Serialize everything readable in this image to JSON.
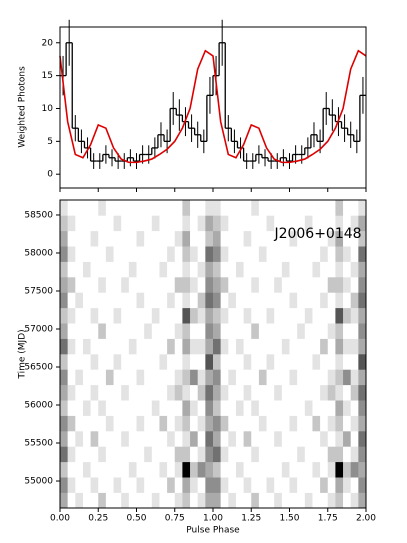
{
  "chart_data": [
    {
      "type": "histogram",
      "ylabel": "Weighted Photons",
      "xlim": [
        0,
        2
      ],
      "ylim": [
        -2.1,
        22.4
      ],
      "xticks": [
        0,
        0.25,
        0.5,
        0.75,
        1,
        1.25,
        1.5,
        1.75,
        2
      ],
      "yticks": [
        0,
        5,
        10,
        15,
        20
      ],
      "color": "#000000",
      "bins": [
        0,
        0.04,
        0.08,
        0.12,
        0.16,
        0.2,
        0.24,
        0.28,
        0.32,
        0.36,
        0.4,
        0.44,
        0.48,
        0.52,
        0.56,
        0.6,
        0.64,
        0.68,
        0.72,
        0.76,
        0.8,
        0.84,
        0.88,
        0.92,
        0.96,
        1,
        1.04,
        1.08,
        1.12,
        1.16,
        1.2,
        1.24,
        1.28,
        1.32,
        1.36,
        1.4,
        1.44,
        1.48,
        1.52,
        1.56,
        1.6,
        1.64,
        1.68,
        1.72,
        1.76,
        1.8,
        1.84,
        1.88,
        1.92,
        1.96,
        2
      ],
      "values": [
        15,
        20,
        7,
        5,
        4,
        2,
        2,
        3,
        2.5,
        2,
        2,
        2.5,
        2,
        3,
        3,
        4,
        6,
        5,
        10,
        9,
        8,
        7,
        6,
        5,
        12,
        15,
        20,
        7,
        5,
        4,
        2,
        2,
        3,
        2.5,
        2,
        2,
        2.5,
        2,
        3,
        3,
        4,
        6,
        5,
        10,
        9,
        8,
        7,
        6,
        5,
        12
      ],
      "errors": [
        3,
        3.5,
        2,
        1.8,
        1.6,
        1.2,
        1.2,
        1.4,
        1.3,
        1.2,
        1.2,
        1.3,
        1.2,
        1.4,
        1.4,
        1.6,
        1.9,
        1.8,
        2.5,
        2.4,
        2.2,
        2.1,
        2,
        1.8,
        2.8,
        3,
        3.5,
        2,
        1.8,
        1.6,
        1.2,
        1.2,
        1.4,
        1.3,
        1.2,
        1.2,
        1.3,
        1.2,
        1.4,
        1.4,
        1.6,
        1.9,
        1.8,
        2.5,
        2.4,
        2.2,
        2.1,
        2,
        1.8,
        2.8
      ],
      "model": {
        "color": "#dd0000",
        "x": [
          0,
          0.05,
          0.1,
          0.15,
          0.2,
          0.25,
          0.3,
          0.35,
          0.4,
          0.45,
          0.5,
          0.55,
          0.6,
          0.65,
          0.7,
          0.75,
          0.8,
          0.85,
          0.9,
          0.95,
          1,
          1.05,
          1.1,
          1.15,
          1.2,
          1.25,
          1.3,
          1.35,
          1.4,
          1.45,
          1.5,
          1.55,
          1.6,
          1.65,
          1.7,
          1.75,
          1.8,
          1.85,
          1.9,
          1.95,
          2
        ],
        "values": [
          18,
          8,
          3,
          2.5,
          4.5,
          7.5,
          7,
          4,
          2.3,
          1.8,
          1.8,
          2,
          2.3,
          3,
          3.8,
          5,
          7,
          10,
          16,
          18.8,
          18,
          8,
          3,
          2.5,
          4.5,
          7.5,
          7,
          4,
          2.3,
          1.8,
          1.8,
          2,
          2.3,
          3,
          3.8,
          5,
          7,
          10,
          16,
          18.8,
          18
        ]
      }
    },
    {
      "type": "heatmap",
      "xlabel": "Pulse Phase",
      "ylabel": "Time (MJD)",
      "annotation": "J2006+0148",
      "xlim": [
        0,
        2
      ],
      "ylim": [
        54645,
        58697
      ],
      "xticks": [
        {
          "value": 0,
          "label": "0.00"
        },
        {
          "value": 0.25,
          "label": "0.25"
        },
        {
          "value": 0.5,
          "label": "0.50"
        },
        {
          "value": 0.75,
          "label": "0.75"
        },
        {
          "value": 1,
          "label": "1.00"
        },
        {
          "value": 1.25,
          "label": "1.25"
        },
        {
          "value": 1.5,
          "label": "1.50"
        },
        {
          "value": 1.75,
          "label": "1.75"
        },
        {
          "value": 2,
          "label": "2.00"
        }
      ],
      "yticks": [
        55000,
        55500,
        56000,
        56500,
        57000,
        57500,
        58000,
        58500
      ],
      "zlim": [
        0,
        9
      ],
      "colors": [
        "#ffffff",
        "#000000"
      ],
      "z": [
        [
          3,
          0,
          1,
          0,
          0,
          2,
          0,
          0,
          1,
          0,
          0,
          0,
          1,
          0,
          0,
          1,
          2,
          0,
          1,
          3,
          3,
          0,
          1,
          0,
          0,
          2,
          0,
          0,
          1,
          0,
          0,
          0,
          1,
          0,
          0,
          1,
          2,
          0,
          1,
          3
        ],
        [
          4,
          1,
          0,
          0,
          1,
          0,
          0,
          1,
          0,
          0,
          1,
          0,
          0,
          0,
          2,
          0,
          3,
          1,
          0,
          4,
          4,
          1,
          0,
          0,
          1,
          0,
          0,
          1,
          0,
          0,
          1,
          0,
          0,
          0,
          2,
          0,
          3,
          1,
          0,
          4
        ],
        [
          2,
          0,
          0,
          1,
          0,
          0,
          0,
          0,
          0,
          1,
          0,
          0,
          0,
          1,
          0,
          1,
          9,
          2,
          4,
          3,
          2,
          0,
          0,
          1,
          0,
          0,
          0,
          0,
          0,
          1,
          0,
          0,
          0,
          1,
          0,
          1,
          9,
          2,
          4,
          3
        ],
        [
          5,
          1,
          0,
          0,
          0,
          1,
          0,
          0,
          0,
          0,
          0,
          1,
          0,
          0,
          0,
          2,
          2,
          0,
          1,
          4,
          5,
          1,
          0,
          0,
          0,
          1,
          0,
          0,
          0,
          0,
          0,
          1,
          0,
          0,
          0,
          2,
          2,
          0,
          1,
          4
        ],
        [
          3,
          0,
          1,
          0,
          2,
          0,
          0,
          0,
          1,
          0,
          0,
          0,
          0,
          0,
          1,
          0,
          1,
          3,
          0,
          5,
          3,
          0,
          1,
          0,
          2,
          0,
          0,
          0,
          1,
          0,
          0,
          0,
          0,
          0,
          1,
          0,
          1,
          3,
          0,
          5
        ],
        [
          4,
          2,
          0,
          0,
          0,
          0,
          1,
          0,
          0,
          0,
          1,
          0,
          0,
          2,
          0,
          1,
          2,
          0,
          1,
          3,
          4,
          2,
          0,
          0,
          0,
          0,
          1,
          0,
          0,
          0,
          1,
          0,
          0,
          2,
          0,
          1,
          2,
          0,
          1,
          3
        ],
        [
          2,
          0,
          0,
          1,
          0,
          1,
          0,
          0,
          0,
          0,
          0,
          0,
          1,
          0,
          0,
          0,
          3,
          1,
          0,
          4,
          2,
          0,
          0,
          1,
          0,
          1,
          0,
          0,
          0,
          0,
          0,
          0,
          1,
          0,
          0,
          0,
          3,
          1,
          0,
          4
        ],
        [
          3,
          1,
          0,
          0,
          1,
          0,
          0,
          0,
          1,
          0,
          0,
          0,
          0,
          0,
          1,
          2,
          1,
          0,
          2,
          5,
          3,
          1,
          0,
          0,
          1,
          0,
          0,
          0,
          1,
          0,
          0,
          0,
          0,
          0,
          1,
          2,
          1,
          0,
          2,
          5
        ],
        [
          4,
          0,
          1,
          0,
          0,
          0,
          2,
          0,
          0,
          0,
          1,
          0,
          0,
          0,
          0,
          1,
          2,
          4,
          1,
          3,
          4,
          0,
          1,
          0,
          0,
          0,
          2,
          0,
          0,
          0,
          1,
          0,
          0,
          0,
          0,
          1,
          2,
          4,
          1,
          3
        ],
        [
          2,
          0,
          0,
          0,
          1,
          0,
          0,
          1,
          0,
          0,
          0,
          0,
          0,
          1,
          0,
          0,
          1,
          0,
          0,
          6,
          2,
          0,
          0,
          0,
          1,
          0,
          0,
          1,
          0,
          0,
          0,
          0,
          0,
          1,
          0,
          0,
          1,
          0,
          0,
          6
        ],
        [
          5,
          1,
          0,
          1,
          0,
          0,
          0,
          0,
          0,
          1,
          0,
          0,
          0,
          0,
          2,
          0,
          3,
          1,
          1,
          3,
          5,
          1,
          0,
          1,
          0,
          0,
          0,
          0,
          0,
          1,
          0,
          0,
          0,
          0,
          2,
          0,
          3,
          1,
          1,
          3
        ],
        [
          3,
          0,
          0,
          0,
          0,
          2,
          0,
          0,
          0,
          0,
          0,
          1,
          0,
          0,
          0,
          1,
          2,
          0,
          0,
          4,
          3,
          0,
          0,
          0,
          0,
          2,
          0,
          0,
          0,
          0,
          0,
          1,
          0,
          0,
          0,
          1,
          2,
          0,
          0,
          4
        ],
        [
          2,
          1,
          0,
          0,
          1,
          0,
          0,
          1,
          0,
          0,
          0,
          0,
          1,
          0,
          0,
          0,
          6,
          2,
          1,
          3,
          2,
          1,
          0,
          0,
          1,
          0,
          0,
          1,
          0,
          0,
          0,
          0,
          1,
          0,
          0,
          0,
          6,
          2,
          1,
          3
        ],
        [
          4,
          0,
          1,
          0,
          0,
          0,
          0,
          0,
          0,
          0,
          1,
          0,
          0,
          0,
          1,
          0,
          1,
          0,
          2,
          5,
          4,
          0,
          1,
          0,
          0,
          0,
          0,
          0,
          0,
          0,
          1,
          0,
          0,
          0,
          1,
          0,
          1,
          0,
          2,
          5
        ],
        [
          3,
          2,
          0,
          0,
          0,
          1,
          0,
          0,
          1,
          0,
          0,
          0,
          0,
          0,
          0,
          2,
          2,
          1,
          0,
          4,
          3,
          2,
          0,
          0,
          0,
          1,
          0,
          0,
          1,
          0,
          0,
          0,
          0,
          0,
          0,
          2,
          2,
          1,
          0,
          4
        ],
        [
          2,
          0,
          0,
          1,
          0,
          0,
          0,
          0,
          0,
          1,
          0,
          0,
          0,
          1,
          0,
          0,
          1,
          0,
          1,
          3,
          2,
          0,
          0,
          1,
          0,
          0,
          0,
          0,
          0,
          1,
          0,
          0,
          0,
          1,
          0,
          0,
          1,
          0,
          1,
          3
        ],
        [
          4,
          1,
          0,
          0,
          0,
          0,
          1,
          0,
          0,
          0,
          0,
          0,
          0,
          0,
          1,
          0,
          2,
          1,
          0,
          5,
          4,
          1,
          0,
          0,
          0,
          0,
          1,
          0,
          0,
          0,
          0,
          0,
          0,
          0,
          1,
          0,
          2,
          1,
          0,
          5
        ],
        [
          3,
          0,
          0,
          0,
          1,
          0,
          0,
          0,
          0,
          0,
          1,
          0,
          0,
          0,
          0,
          1,
          3,
          0,
          0,
          2,
          3,
          0,
          0,
          0,
          1,
          0,
          0,
          0,
          0,
          0,
          1,
          0,
          0,
          0,
          0,
          1,
          3,
          0,
          0,
          2
        ],
        [
          2,
          1,
          0,
          0,
          0,
          0,
          0,
          1,
          0,
          0,
          0,
          0,
          1,
          0,
          0,
          0,
          1,
          0,
          1,
          3,
          2,
          1,
          0,
          0,
          0,
          0,
          0,
          1,
          0,
          0,
          0,
          0,
          1,
          0,
          0,
          0,
          1,
          0,
          1,
          3
        ],
        [
          1,
          0,
          0,
          0,
          0,
          1,
          0,
          0,
          0,
          0,
          0,
          0,
          0,
          0,
          0,
          0,
          2,
          0,
          0,
          1,
          1,
          0,
          0,
          0,
          0,
          1,
          0,
          0,
          0,
          0,
          0,
          0,
          0,
          0,
          0,
          0,
          2,
          0,
          0,
          1
        ]
      ]
    }
  ]
}
